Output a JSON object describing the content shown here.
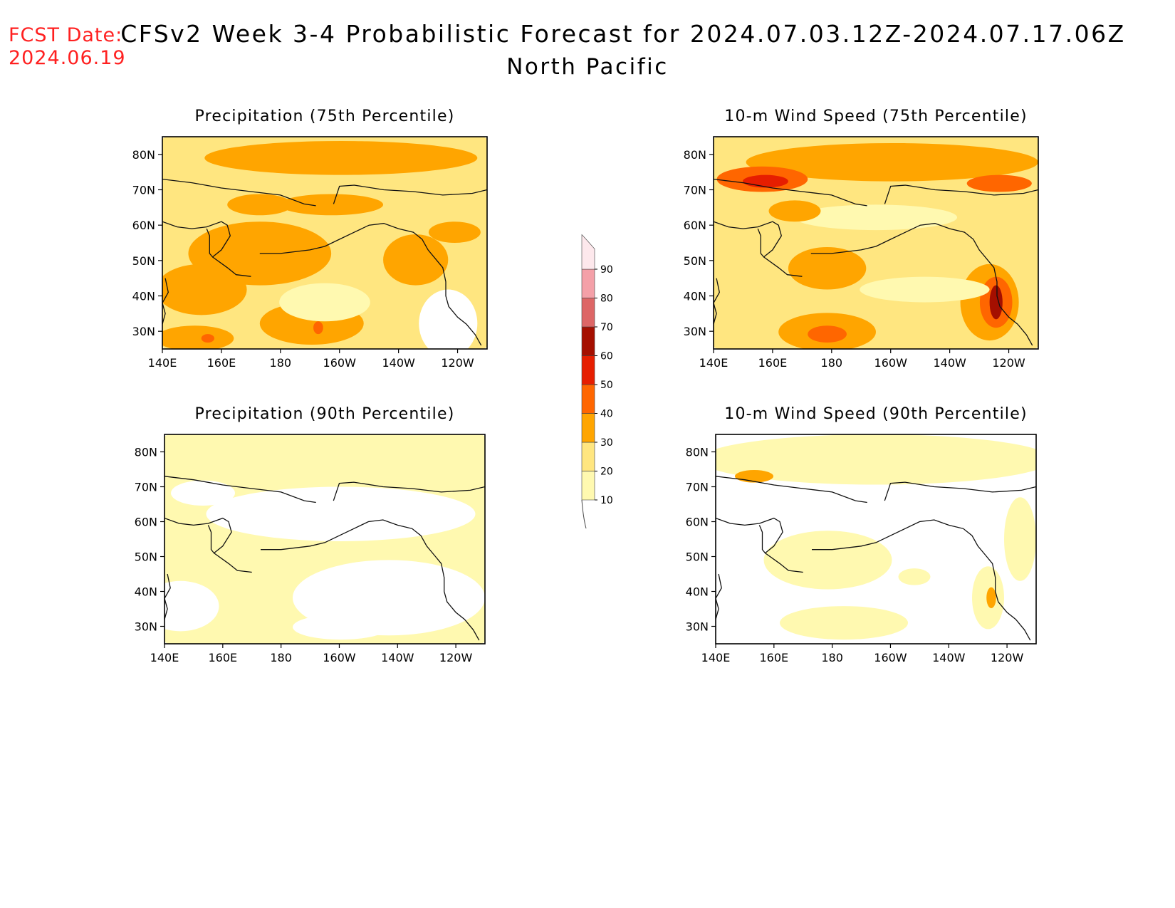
{
  "header": {
    "fcst_label": "FCST Date:",
    "fcst_date": "2024.06.19",
    "title": "CFSv2 Week 3-4 Probabilistic Forecast for 2024.07.03.12Z-2024.07.17.06Z",
    "subtitle": "North Pacific"
  },
  "panels": [
    {
      "id": "precip-75",
      "title": "Precipitation (75th Percentile)",
      "variable": "precipitation",
      "percentile": 75
    },
    {
      "id": "wind-75",
      "title": "10-m Wind Speed (75th Percentile)",
      "variable": "wind",
      "percentile": 75
    },
    {
      "id": "precip-90",
      "title": "Precipitation (90th Percentile)",
      "variable": "precipitation",
      "percentile": 90
    },
    {
      "id": "wind-90",
      "title": "10-m Wind Speed (90th Percentile)",
      "variable": "wind",
      "percentile": 90
    }
  ],
  "axes": {
    "lon_ticks": [
      "140E",
      "160E",
      "180",
      "160W",
      "140W",
      "120W"
    ],
    "lat_ticks": [
      "80N",
      "70N",
      "60N",
      "50N",
      "40N",
      "30N"
    ],
    "lon_range": [
      140,
      250
    ],
    "lat_range": [
      25,
      85
    ]
  },
  "colorbar": {
    "levels": [
      "10",
      "20",
      "30",
      "40",
      "50",
      "60",
      "70",
      "80",
      "90"
    ],
    "colors": [
      "#fff9b0",
      "#ffe680",
      "#ffa500",
      "#ff6600",
      "#e61e00",
      "#a50f00",
      "#dd6666",
      "#f4a0a8",
      "#fde8ec"
    ]
  }
}
